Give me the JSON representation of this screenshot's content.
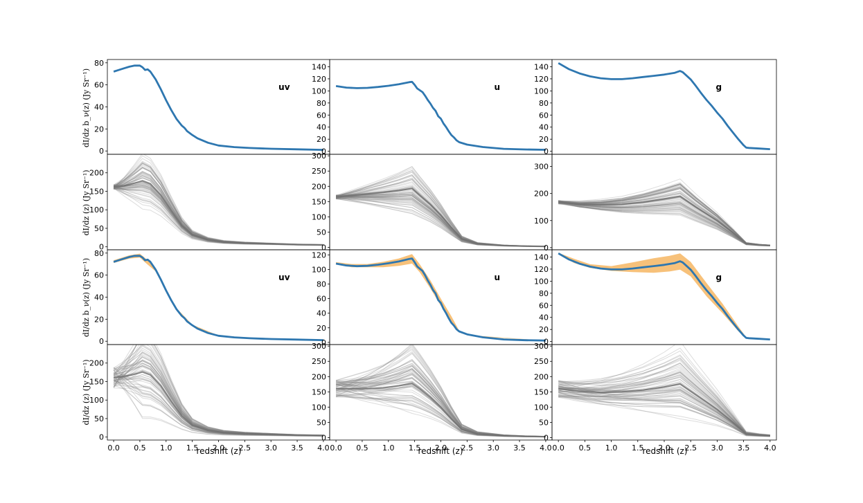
{
  "figure": {
    "xlabel": "redshift (z)",
    "ylabel_bias": "dI/dz b_ν(z) (Jy Sr⁻¹)",
    "ylabel_plain": "dI/dz (z) (Jy Sr⁻¹)",
    "xticks": [
      "0.0",
      "0.5",
      "1.0",
      "1.5",
      "2.0",
      "2.5",
      "3.0",
      "3.5",
      "4.0"
    ],
    "colors": {
      "main_line": "#2e77b0",
      "band_fill": "#f6ba6c",
      "samples": "#808080",
      "frame": "#000000"
    }
  },
  "chart_data": [
    {
      "type": "line",
      "row": 1,
      "col": 1,
      "band": "uv",
      "xlim": [
        -0.12,
        4.12
      ],
      "ylim": [
        -3,
        83
      ],
      "yticks": [
        0,
        20,
        40,
        60,
        80
      ],
      "series": [
        {
          "x": [
            0,
            0.1,
            0.2,
            0.3,
            0.4,
            0.5,
            0.55,
            0.6,
            0.65,
            0.7,
            0.8,
            0.9,
            1.0,
            1.1,
            1.2,
            1.3,
            1.35,
            1.4,
            1.5,
            1.6,
            1.8,
            2.0,
            2.3,
            2.6,
            3.0,
            3.5,
            4.0
          ],
          "y": [
            72,
            73.5,
            75,
            76.5,
            77.5,
            77.5,
            76,
            73.5,
            74,
            72,
            65,
            56,
            46,
            37,
            29,
            23,
            21,
            18,
            14.5,
            11.5,
            7.5,
            5,
            3.5,
            2.7,
            2,
            1.5,
            1
          ]
        }
      ]
    },
    {
      "type": "line",
      "row": 1,
      "col": 2,
      "band": "u",
      "xlim": [
        -0.12,
        4.12
      ],
      "ylim": [
        -5,
        152
      ],
      "yticks": [
        0,
        20,
        40,
        60,
        80,
        100,
        120,
        140
      ],
      "series": [
        {
          "x": [
            0,
            0.2,
            0.4,
            0.6,
            0.8,
            1.0,
            1.2,
            1.4,
            1.45,
            1.5,
            1.55,
            1.6,
            1.65,
            1.7,
            1.75,
            1.8,
            1.85,
            1.9,
            1.95,
            2.0,
            2.05,
            2.1,
            2.15,
            2.2,
            2.25,
            2.3,
            2.35,
            2.5,
            2.8,
            3.2,
            3.6,
            4.0
          ],
          "y": [
            108,
            105.5,
            104.5,
            105,
            106.5,
            108.5,
            111,
            114.5,
            115,
            110,
            104,
            101,
            98,
            92,
            85,
            79,
            72,
            67,
            58,
            54,
            46,
            40,
            33,
            27,
            23,
            18,
            15,
            11,
            7,
            4,
            3,
            2.5
          ]
        }
      ]
    },
    {
      "type": "line",
      "row": 1,
      "col": 3,
      "band": "g",
      "xlim": [
        -0.12,
        4.12
      ],
      "ylim": [
        -5,
        152
      ],
      "yticks": [
        0,
        20,
        40,
        60,
        80,
        100,
        120,
        140
      ],
      "series": [
        {
          "x": [
            0,
            0.2,
            0.4,
            0.6,
            0.8,
            1.0,
            1.2,
            1.4,
            1.6,
            1.8,
            2.0,
            2.2,
            2.3,
            2.35,
            2.4,
            2.5,
            2.6,
            2.7,
            2.8,
            2.9,
            3.0,
            3.1,
            3.2,
            3.3,
            3.4,
            3.5,
            3.55,
            3.6,
            3.8,
            4.0
          ],
          "y": [
            146,
            136,
            129,
            124,
            121,
            119.5,
            119.5,
            121,
            123,
            125,
            127,
            130,
            133,
            131,
            127,
            119,
            108,
            96,
            85,
            75,
            64,
            54,
            42,
            31,
            20,
            10,
            6,
            5.5,
            4.5,
            3.5
          ]
        }
      ]
    },
    {
      "type": "line",
      "row": 2,
      "col": 1,
      "xlim": [
        -0.12,
        4.12
      ],
      "ylim": [
        -8,
        250
      ],
      "yticks": [
        0,
        50,
        100,
        150,
        200
      ],
      "series": [
        {
          "x": [
            0,
            0.2,
            0.4,
            0.55,
            0.7,
            0.9,
            1.1,
            1.3,
            1.5,
            1.8,
            2.1,
            2.5,
            3.0,
            3.5,
            4.0
          ],
          "y": [
            162,
            165,
            172,
            178,
            170,
            140,
            98,
            58,
            33,
            19,
            13,
            10,
            8,
            6,
            5
          ]
        }
      ]
    },
    {
      "type": "line",
      "row": 2,
      "col": 2,
      "xlim": [
        -0.12,
        4.12
      ],
      "ylim": [
        -8,
        305
      ],
      "yticks": [
        0,
        50,
        100,
        150,
        200,
        250,
        300
      ],
      "series": [
        {
          "x": [
            0,
            0.3,
            0.6,
            0.9,
            1.2,
            1.45,
            1.6,
            1.8,
            2.0,
            2.2,
            2.4,
            2.7,
            3.2,
            3.6,
            4.0
          ],
          "y": [
            165,
            170,
            175,
            180,
            186,
            193,
            170,
            140,
            105,
            65,
            28,
            12,
            6,
            4,
            3
          ]
        }
      ]
    },
    {
      "type": "line",
      "row": 2,
      "col": 3,
      "xlim": [
        -0.12,
        4.12
      ],
      "ylim": [
        -8,
        345
      ],
      "yticks": [
        0,
        100,
        200,
        300
      ],
      "series": [
        {
          "x": [
            0,
            0.4,
            0.8,
            1.2,
            1.6,
            2.0,
            2.3,
            2.6,
            3.0,
            3.3,
            3.55,
            3.8,
            4.0
          ],
          "y": [
            168,
            160,
            158,
            160,
            168,
            180,
            190,
            150,
            100,
            55,
            15,
            10,
            8
          ]
        }
      ]
    },
    {
      "type": "line",
      "row": 3,
      "col": 1,
      "band": "uv",
      "xlim": [
        -0.12,
        4.12
      ],
      "ylim": [
        -3,
        83
      ],
      "yticks": [
        0,
        20,
        40,
        60,
        80
      ],
      "series": [
        {
          "x": [
            0,
            0.1,
            0.2,
            0.3,
            0.4,
            0.5,
            0.55,
            0.6,
            0.65,
            0.7,
            0.8,
            0.9,
            1.0,
            1.1,
            1.2,
            1.3,
            1.35,
            1.4,
            1.5,
            1.6,
            1.8,
            2.0,
            2.3,
            2.6,
            3.0,
            3.5,
            4.0
          ],
          "y": [
            72,
            73.5,
            75,
            76.5,
            77.5,
            77.5,
            76,
            73.5,
            74,
            72,
            65,
            56,
            46,
            37,
            29,
            23,
            21,
            18,
            14.5,
            11.5,
            7.5,
            5,
            3.5,
            2.7,
            2,
            1.5,
            1
          ]
        }
      ],
      "band_fill": {
        "x": [
          0,
          0.3,
          0.5,
          0.6,
          0.8,
          1.0,
          1.2,
          1.5,
          2.0,
          3.0,
          4.0
        ],
        "lower": [
          71,
          75,
          76,
          71.5,
          63.5,
          44.5,
          28,
          14,
          4.8,
          1.9,
          1
        ],
        "upper": [
          73.5,
          78,
          79.5,
          75.5,
          66.5,
          47.5,
          30,
          15,
          5.2,
          2.1,
          1
        ]
      }
    },
    {
      "type": "line",
      "row": 3,
      "col": 2,
      "band": "u",
      "xlim": [
        -0.12,
        4.12
      ],
      "ylim": [
        -3,
        127
      ],
      "yticks": [
        0,
        20,
        40,
        60,
        80,
        100,
        120
      ],
      "series": [
        {
          "x": [
            0,
            0.2,
            0.4,
            0.6,
            0.8,
            1.0,
            1.2,
            1.4,
            1.45,
            1.5,
            1.55,
            1.6,
            1.65,
            1.7,
            1.75,
            1.8,
            1.85,
            1.9,
            1.95,
            2.0,
            2.05,
            2.1,
            2.15,
            2.2,
            2.25,
            2.3,
            2.35,
            2.5,
            2.8,
            3.2,
            3.6,
            4.0
          ],
          "y": [
            108,
            105.5,
            104.5,
            105,
            106.5,
            108.5,
            111,
            114.5,
            115,
            110,
            104,
            101,
            98,
            92,
            85,
            79,
            72,
            67,
            58,
            54,
            46,
            40,
            33,
            27,
            23,
            18,
            15,
            11,
            7,
            4,
            3,
            2.5
          ]
        }
      ],
      "band_fill": {
        "x": [
          0,
          0.3,
          0.6,
          0.9,
          1.2,
          1.45,
          1.6,
          1.8,
          2.0,
          2.2,
          2.35,
          2.6,
          4.0
        ],
        "lower": [
          107,
          103,
          103,
          103,
          105,
          108,
          96,
          74,
          50,
          29,
          14.5,
          8.5,
          2.5
        ],
        "upper": [
          110,
          107.5,
          107.5,
          110.5,
          115,
          121,
          107,
          85,
          60,
          36,
          16,
          9.5,
          2.5
        ]
      }
    },
    {
      "type": "line",
      "row": 3,
      "col": 3,
      "band": "g",
      "xlim": [
        -0.12,
        4.12
      ],
      "ylim": [
        -5,
        152
      ],
      "yticks": [
        0,
        20,
        40,
        60,
        80,
        100,
        120,
        140
      ],
      "series": [
        {
          "x": [
            0,
            0.2,
            0.4,
            0.6,
            0.8,
            1.0,
            1.2,
            1.4,
            1.6,
            1.8,
            2.0,
            2.2,
            2.3,
            2.35,
            2.4,
            2.5,
            2.6,
            2.7,
            2.8,
            2.9,
            3.0,
            3.1,
            3.2,
            3.3,
            3.4,
            3.5,
            3.55,
            3.6,
            3.8,
            4.0
          ],
          "y": [
            146,
            136,
            129,
            124,
            121,
            119.5,
            119.5,
            121,
            123,
            125,
            127,
            130,
            133,
            131,
            127,
            119,
            108,
            96,
            85,
            75,
            64,
            54,
            42,
            31,
            20,
            10,
            6,
            5.5,
            4.5,
            3.5
          ]
        }
      ],
      "band_fill": {
        "x": [
          0,
          0.3,
          0.6,
          1.0,
          1.4,
          1.8,
          2.1,
          2.3,
          2.5,
          2.8,
          3.1,
          3.4,
          3.55,
          4.0
        ],
        "lower": [
          145,
          130,
          122,
          117,
          115,
          114,
          116,
          119,
          108,
          75,
          47,
          17,
          6,
          3.5
        ],
        "upper": [
          147,
          137,
          128,
          125,
          131,
          138,
          142,
          146,
          132,
          97,
          63,
          25,
          7,
          3.5
        ]
      }
    },
    {
      "type": "line",
      "row": 4,
      "col": 1,
      "xlim": [
        -0.12,
        4.12
      ],
      "ylim": [
        -8,
        250
      ],
      "yticks": [
        0,
        50,
        100,
        150,
        200
      ],
      "series": [
        {
          "x": [
            0,
            0.2,
            0.4,
            0.55,
            0.7,
            0.9,
            1.1,
            1.3,
            1.5,
            1.8,
            2.1,
            2.5,
            3.0,
            3.5,
            4.0
          ],
          "y": [
            160,
            164,
            170,
            176,
            168,
            138,
            96,
            57,
            32,
            18,
            12,
            9,
            7,
            5,
            4
          ]
        }
      ]
    },
    {
      "type": "line",
      "row": 4,
      "col": 2,
      "xlim": [
        -0.12,
        4.12
      ],
      "ylim": [
        -8,
        305
      ],
      "yticks": [
        0,
        50,
        100,
        150,
        200,
        250,
        300
      ],
      "series": [
        {
          "x": [
            0,
            0.3,
            0.6,
            0.9,
            1.2,
            1.45,
            1.6,
            1.8,
            2.0,
            2.2,
            2.4,
            2.7,
            3.2,
            3.6,
            4.0
          ],
          "y": [
            160,
            160,
            160,
            163,
            170,
            178,
            160,
            132,
            100,
            62,
            27,
            12,
            6,
            4,
            3
          ]
        }
      ]
    },
    {
      "type": "line",
      "row": 4,
      "col": 3,
      "xlim": [
        -0.12,
        4.12
      ],
      "ylim": [
        -8,
        305
      ],
      "yticks": [
        0,
        50,
        100,
        150,
        200,
        250,
        300
      ],
      "series": [
        {
          "x": [
            0,
            0.4,
            0.8,
            1.2,
            1.6,
            2.0,
            2.3,
            2.6,
            3.0,
            3.3,
            3.55,
            3.8,
            4.0
          ],
          "y": [
            160,
            152,
            148,
            150,
            156,
            166,
            176,
            140,
            92,
            50,
            12,
            8,
            6
          ]
        }
      ]
    }
  ]
}
